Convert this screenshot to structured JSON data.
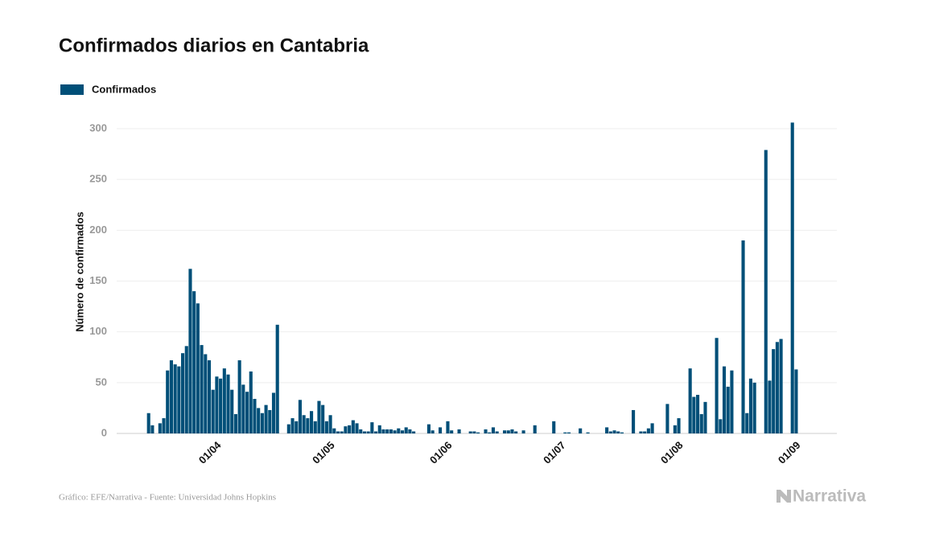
{
  "chart_data": {
    "type": "bar",
    "title": "Confirmados diarios en Cantabria",
    "y_label": "Número de confirmados",
    "source": "Gráfico: EFE/Narrativa - Fuente: Universidad Johns Hopkins",
    "logo": "Narrativa",
    "color": "#004f78",
    "grid": true,
    "legend": "top-left",
    "ylim": [
      0,
      300
    ],
    "yticks": [
      0,
      50,
      100,
      150,
      200,
      250,
      300
    ],
    "categories": [
      null,
      null,
      null,
      null,
      null,
      null,
      null,
      null,
      null,
      null,
      null,
      null,
      null,
      null,
      null,
      null,
      null,
      "01/04",
      null,
      null,
      null,
      null,
      null,
      null,
      null,
      null,
      null,
      null,
      null,
      null,
      null,
      null,
      null,
      null,
      null,
      null,
      null,
      null,
      null,
      null,
      null,
      null,
      null,
      null,
      null,
      null,
      null,
      "01/05",
      null,
      null,
      null,
      null,
      null,
      null,
      null,
      null,
      null,
      null,
      null,
      null,
      null,
      null,
      null,
      null,
      null,
      null,
      null,
      null,
      null,
      null,
      null,
      null,
      null,
      null,
      null,
      null,
      null,
      null,
      "01/06",
      null,
      null,
      null,
      null,
      null,
      null,
      null,
      null,
      null,
      null,
      null,
      null,
      null,
      null,
      null,
      null,
      null,
      null,
      null,
      null,
      null,
      null,
      null,
      null,
      null,
      null,
      null,
      null,
      null,
      "01/07",
      null,
      null,
      null,
      null,
      null,
      null,
      null,
      null,
      null,
      null,
      null,
      null,
      null,
      null,
      null,
      null,
      null,
      null,
      null,
      null,
      null,
      null,
      null,
      null,
      null,
      null,
      null,
      null,
      null,
      null,
      "01/08",
      null,
      null,
      null,
      null,
      null,
      null,
      null,
      null,
      null,
      null,
      null,
      null,
      null,
      null,
      null,
      null,
      null,
      null,
      null,
      null,
      null,
      null,
      null,
      null,
      null,
      null,
      null,
      null,
      null,
      null,
      "01/09",
      null
    ],
    "series": [
      {
        "name": "Confirmados",
        "color": "#004f78",
        "values": [
          20,
          8,
          0,
          10,
          15,
          62,
          72,
          68,
          66,
          79,
          86,
          162,
          140,
          128,
          87,
          78,
          72,
          43,
          56,
          54,
          64,
          58,
          43,
          19,
          72,
          48,
          41,
          61,
          34,
          25,
          20,
          28,
          23,
          40,
          107,
          0,
          0,
          9,
          15,
          12,
          33,
          18,
          15,
          22,
          12,
          32,
          28,
          12,
          18,
          5,
          2,
          2,
          7,
          8,
          13,
          10,
          4,
          2,
          2,
          11,
          2,
          8,
          4,
          4,
          4,
          3,
          5,
          3,
          6,
          4,
          2,
          0,
          0,
          0,
          9,
          3,
          0,
          6,
          0,
          12,
          3,
          0,
          4,
          0,
          0,
          2,
          2,
          1,
          0,
          4,
          1,
          6,
          2,
          0,
          3,
          3,
          4,
          2,
          0,
          3,
          0,
          0,
          8,
          0,
          0,
          0,
          0,
          12,
          0,
          0,
          1,
          1,
          0,
          0,
          5,
          0,
          1,
          0,
          0,
          0,
          0,
          6,
          2,
          3,
          2,
          1,
          0,
          0,
          23,
          0,
          2,
          2,
          5,
          10,
          0,
          0,
          0,
          29,
          0,
          8,
          15,
          0,
          0,
          64,
          36,
          38,
          19,
          31,
          0,
          0,
          94,
          14,
          66,
          46,
          62,
          0,
          0,
          190,
          20,
          54,
          50,
          0,
          0,
          279,
          52,
          83,
          90,
          93,
          0,
          0,
          306,
          63
        ]
      }
    ]
  }
}
